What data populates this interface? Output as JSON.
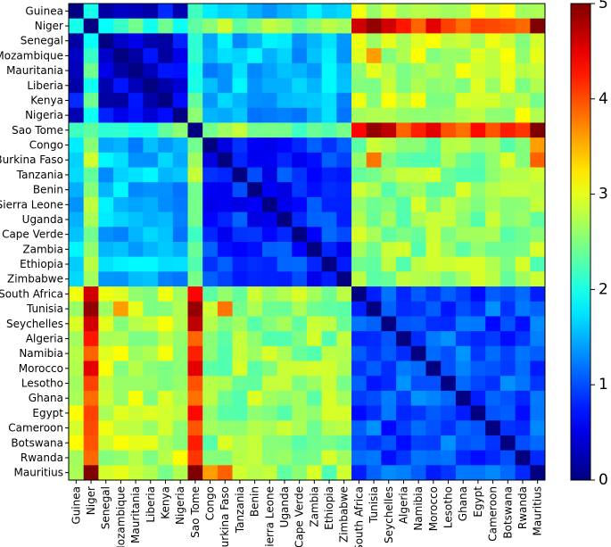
{
  "chart_data": {
    "type": "heatmap",
    "title": "",
    "xlabel": "",
    "ylabel": "",
    "labels": [
      "Guinea",
      "Niger",
      "Senegal",
      "Mozambique",
      "Mauritania",
      "Liberia",
      "Kenya",
      "Nigeria",
      "Sao Tome",
      "Congo",
      "Burkina Faso",
      "Tanzania",
      "Benin",
      "Sierra Leone",
      "Uganda",
      "Cape Verde",
      "Zambia",
      "Ethiopia",
      "Zimbabwe",
      "South Africa",
      "Tunisia",
      "Seychelles",
      "Algeria",
      "Namibia",
      "Morocco",
      "Lesotho",
      "Ghana",
      "Egypt",
      "Cameroon",
      "Botswana",
      "Rwanda",
      "Mauritius"
    ],
    "groups": {
      "A": [
        "Guinea",
        "Senegal",
        "Mozambique",
        "Mauritania",
        "Liberia",
        "Kenya",
        "Nigeria"
      ],
      "B": [
        "Congo",
        "Burkina Faso",
        "Tanzania",
        "Benin",
        "Sierra Leone",
        "Uganda",
        "Cape Verde",
        "Zambia",
        "Ethiopia",
        "Zimbabwe"
      ],
      "C": [
        "South Africa",
        "Tunisia",
        "Seychelles",
        "Algeria",
        "Namibia",
        "Morocco",
        "Lesotho",
        "Ghana",
        "Egypt",
        "Cameroon",
        "Botswana",
        "Rwanda",
        "Mauritius"
      ],
      "outliers": [
        "Niger",
        "Sao Tome"
      ]
    },
    "typical_values": {
      "within_A": 0.5,
      "within_B": 0.8,
      "within_C": 1.0,
      "A_vs_B": 1.5,
      "A_vs_C": 2.8,
      "B_vs_C": 2.6,
      "Niger_vs_A": 2.2,
      "Niger_vs_B": 2.7,
      "Niger_vs_C": 4.0,
      "SaoTome_vs_A": 2.3,
      "SaoTome_vs_B": 2.5,
      "SaoTome_vs_C": 4.1,
      "Niger_vs_SaoTome": 2.0
    },
    "notable_cells": [
      {
        "row": "Niger",
        "col": "Tunisia",
        "value": 4.9
      },
      {
        "row": "Niger",
        "col": "Mauritius",
        "value": 5.0
      },
      {
        "row": "Niger",
        "col": "South Africa",
        "value": 4.6
      },
      {
        "row": "Niger",
        "col": "Seychelles",
        "value": 4.6
      },
      {
        "row": "Niger",
        "col": "Morocco",
        "value": 4.5
      },
      {
        "row": "Sao Tome",
        "col": "Tunisia",
        "value": 4.9
      },
      {
        "row": "Sao Tome",
        "col": "Mauritius",
        "value": 5.0
      },
      {
        "row": "Sao Tome",
        "col": "Seychelles",
        "value": 4.7
      },
      {
        "row": "Sao Tome",
        "col": "Morocco",
        "value": 4.5
      },
      {
        "row": "Tunisia",
        "col": "Burkina Faso",
        "value": 3.8
      },
      {
        "row": "Mauritius",
        "col": "Burkina Faso",
        "value": 3.9
      },
      {
        "row": "Mauritius",
        "col": "Congo",
        "value": 3.6
      },
      {
        "row": "Mozambique",
        "col": "Tunisia",
        "value": 3.6
      }
    ],
    "colorbar": {
      "colormap": "jet",
      "min": 0,
      "max": 5,
      "ticks": [
        "0",
        "1",
        "2",
        "3",
        "4",
        "5"
      ]
    }
  }
}
